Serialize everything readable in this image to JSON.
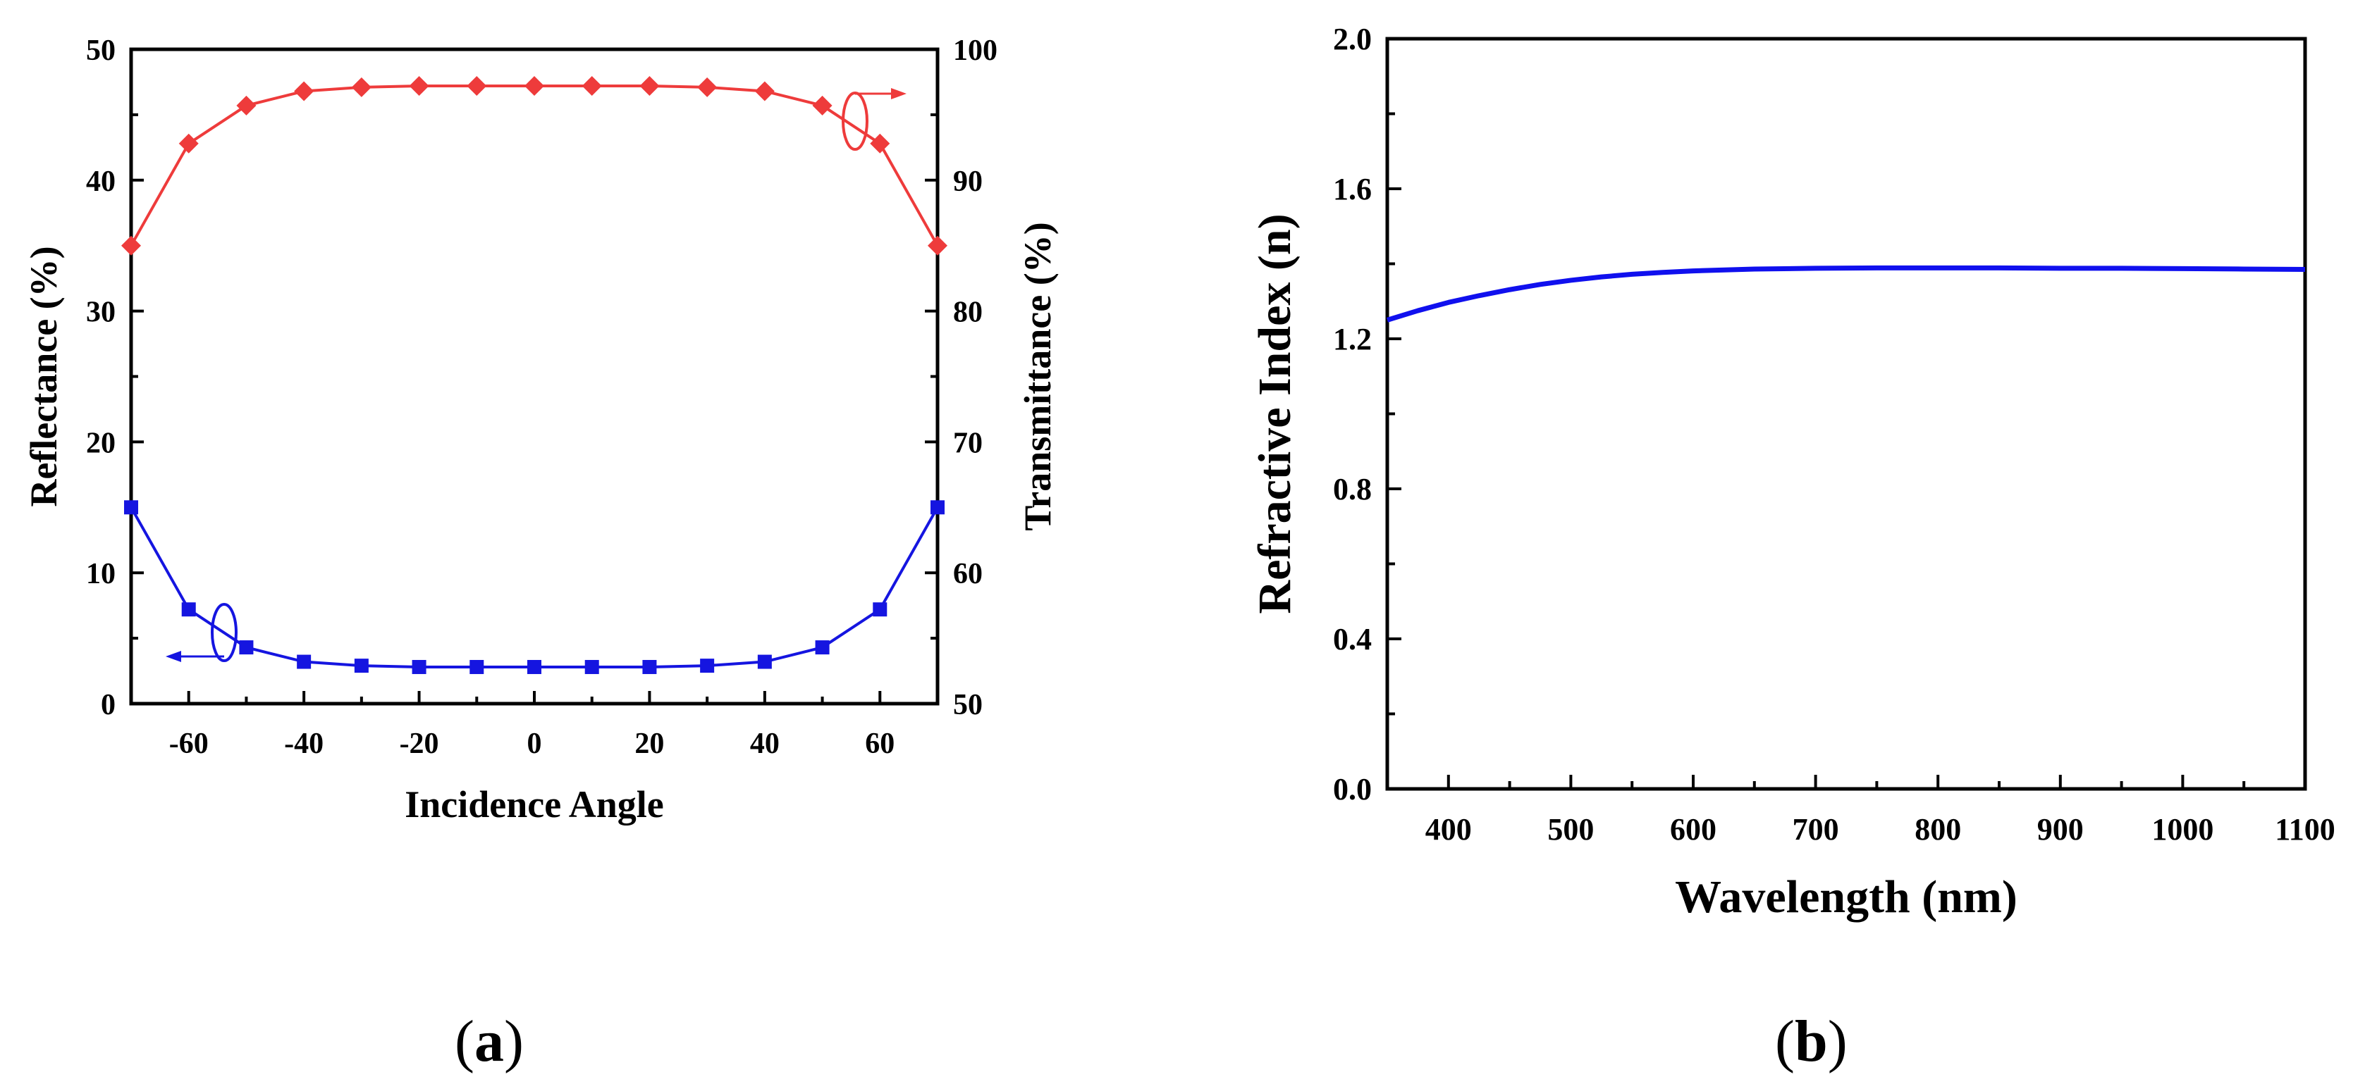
{
  "chart_data": [
    {
      "type": "line",
      "panel": "(a)",
      "title": "",
      "xlabel": "Incidence Angle",
      "ylabel": "Reflectance (%)",
      "y2label": "Transmittance (%)",
      "xlim": [
        -70,
        70
      ],
      "ylim": [
        0,
        50
      ],
      "y2lim": [
        50,
        100
      ],
      "xticks": [
        -60,
        -40,
        -20,
        0,
        20,
        40,
        60
      ],
      "yticks": [
        0,
        10,
        20,
        30,
        40,
        50
      ],
      "y2ticks": [
        50,
        60,
        70,
        80,
        90,
        100
      ],
      "x": [
        -70,
        -60,
        -50,
        -40,
        -30,
        -20,
        -10,
        0,
        10,
        20,
        30,
        40,
        50,
        60,
        70
      ],
      "series": [
        {
          "name": "Transmittance",
          "axis": "right",
          "color": "#ee3b3b",
          "marker": "diamond",
          "values": [
            85,
            92.8,
            95.7,
            96.8,
            97.1,
            97.2,
            97.2,
            97.2,
            97.2,
            97.2,
            97.1,
            96.8,
            95.7,
            92.8,
            85
          ]
        },
        {
          "name": "Reflectance",
          "axis": "left",
          "color": "#1515e0",
          "marker": "square",
          "values": [
            15,
            7.2,
            4.3,
            3.2,
            2.9,
            2.8,
            2.8,
            2.8,
            2.8,
            2.8,
            2.9,
            3.2,
            4.3,
            7.2,
            15
          ]
        }
      ]
    },
    {
      "type": "line",
      "panel": "(b)",
      "title": "",
      "xlabel": "Wavelength (nm)",
      "ylabel": "Refractive Index (n)",
      "xlim": [
        350,
        1100
      ],
      "ylim": [
        0,
        2.0
      ],
      "xticks": [
        400,
        500,
        600,
        700,
        800,
        900,
        1000,
        1100
      ],
      "ytick_labels": [
        "0.0",
        "0.4",
        "0.8",
        "1.2",
        "1.6",
        "2.0"
      ],
      "series": [
        {
          "name": "Refractive Index",
          "color": "#1010ee",
          "x": [
            350,
            375,
            400,
            425,
            450,
            475,
            500,
            525,
            550,
            575,
            600,
            650,
            700,
            750,
            800,
            850,
            900,
            950,
            1000,
            1050,
            1100
          ],
          "values": [
            1.25,
            1.275,
            1.297,
            1.315,
            1.331,
            1.345,
            1.356,
            1.365,
            1.372,
            1.377,
            1.381,
            1.386,
            1.388,
            1.389,
            1.389,
            1.389,
            1.388,
            1.388,
            1.387,
            1.386,
            1.385
          ]
        }
      ]
    }
  ],
  "labels": {
    "panel_a": "a",
    "panel_b": "b"
  }
}
